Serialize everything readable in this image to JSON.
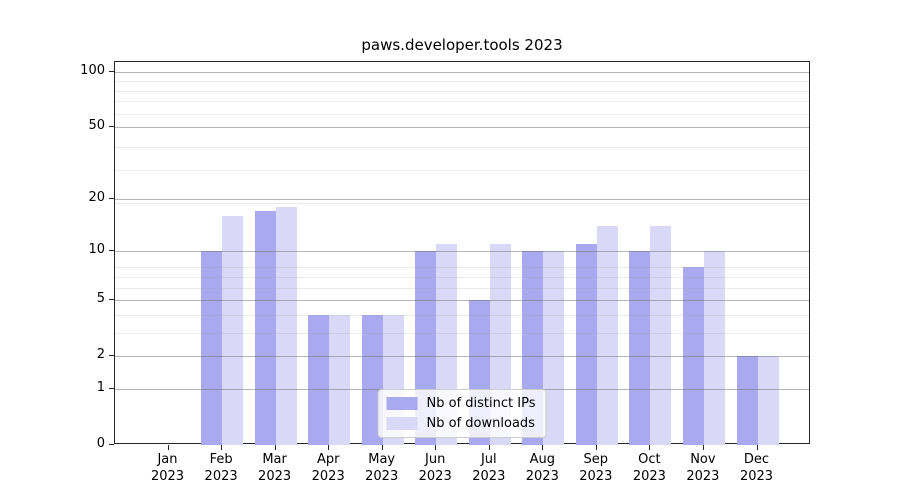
{
  "chart_data": {
    "type": "bar",
    "title": "paws.developer.tools 2023",
    "categories": [
      "Jan",
      "Feb",
      "Mar",
      "Apr",
      "May",
      "Jun",
      "Jul",
      "Aug",
      "Sep",
      "Oct",
      "Nov",
      "Dec"
    ],
    "category_year": "2023",
    "series": [
      {
        "name": "Nb of distinct IPs",
        "color": "#a9a9ef",
        "values": [
          0,
          10,
          17,
          4,
          4,
          10,
          5,
          10,
          11,
          10,
          8,
          2
        ]
      },
      {
        "name": "Nb of downloads",
        "color": "#d9d9f7",
        "values": [
          0,
          16,
          18,
          4,
          4,
          11,
          11,
          10,
          14,
          14,
          10,
          2
        ]
      }
    ],
    "y_axis": {
      "scale": "log1p",
      "tick_values": [
        0,
        1,
        2,
        5,
        10,
        20,
        50,
        100
      ],
      "tick_labels": [
        "0",
        "1",
        "2",
        "5",
        "10",
        "20",
        "50",
        "100"
      ],
      "minor_gridline_values": [
        3,
        4,
        6,
        7,
        8,
        19,
        29,
        39,
        59,
        69,
        79,
        89
      ],
      "max_value": 113
    },
    "legend": {
      "position": "lower center",
      "entries": [
        "Nb of distinct IPs",
        "Nb of downloads"
      ]
    },
    "grid": true
  },
  "colors": {
    "background": "#ffffff",
    "bar_distinct_ips": "#a9a9ef",
    "bar_downloads": "#d9d9f7",
    "grid_major": "#b0b0b0",
    "grid_minor": "#e0e0e0",
    "axis": "#262626",
    "text": "#000000",
    "legend_border": "#cccccc"
  }
}
